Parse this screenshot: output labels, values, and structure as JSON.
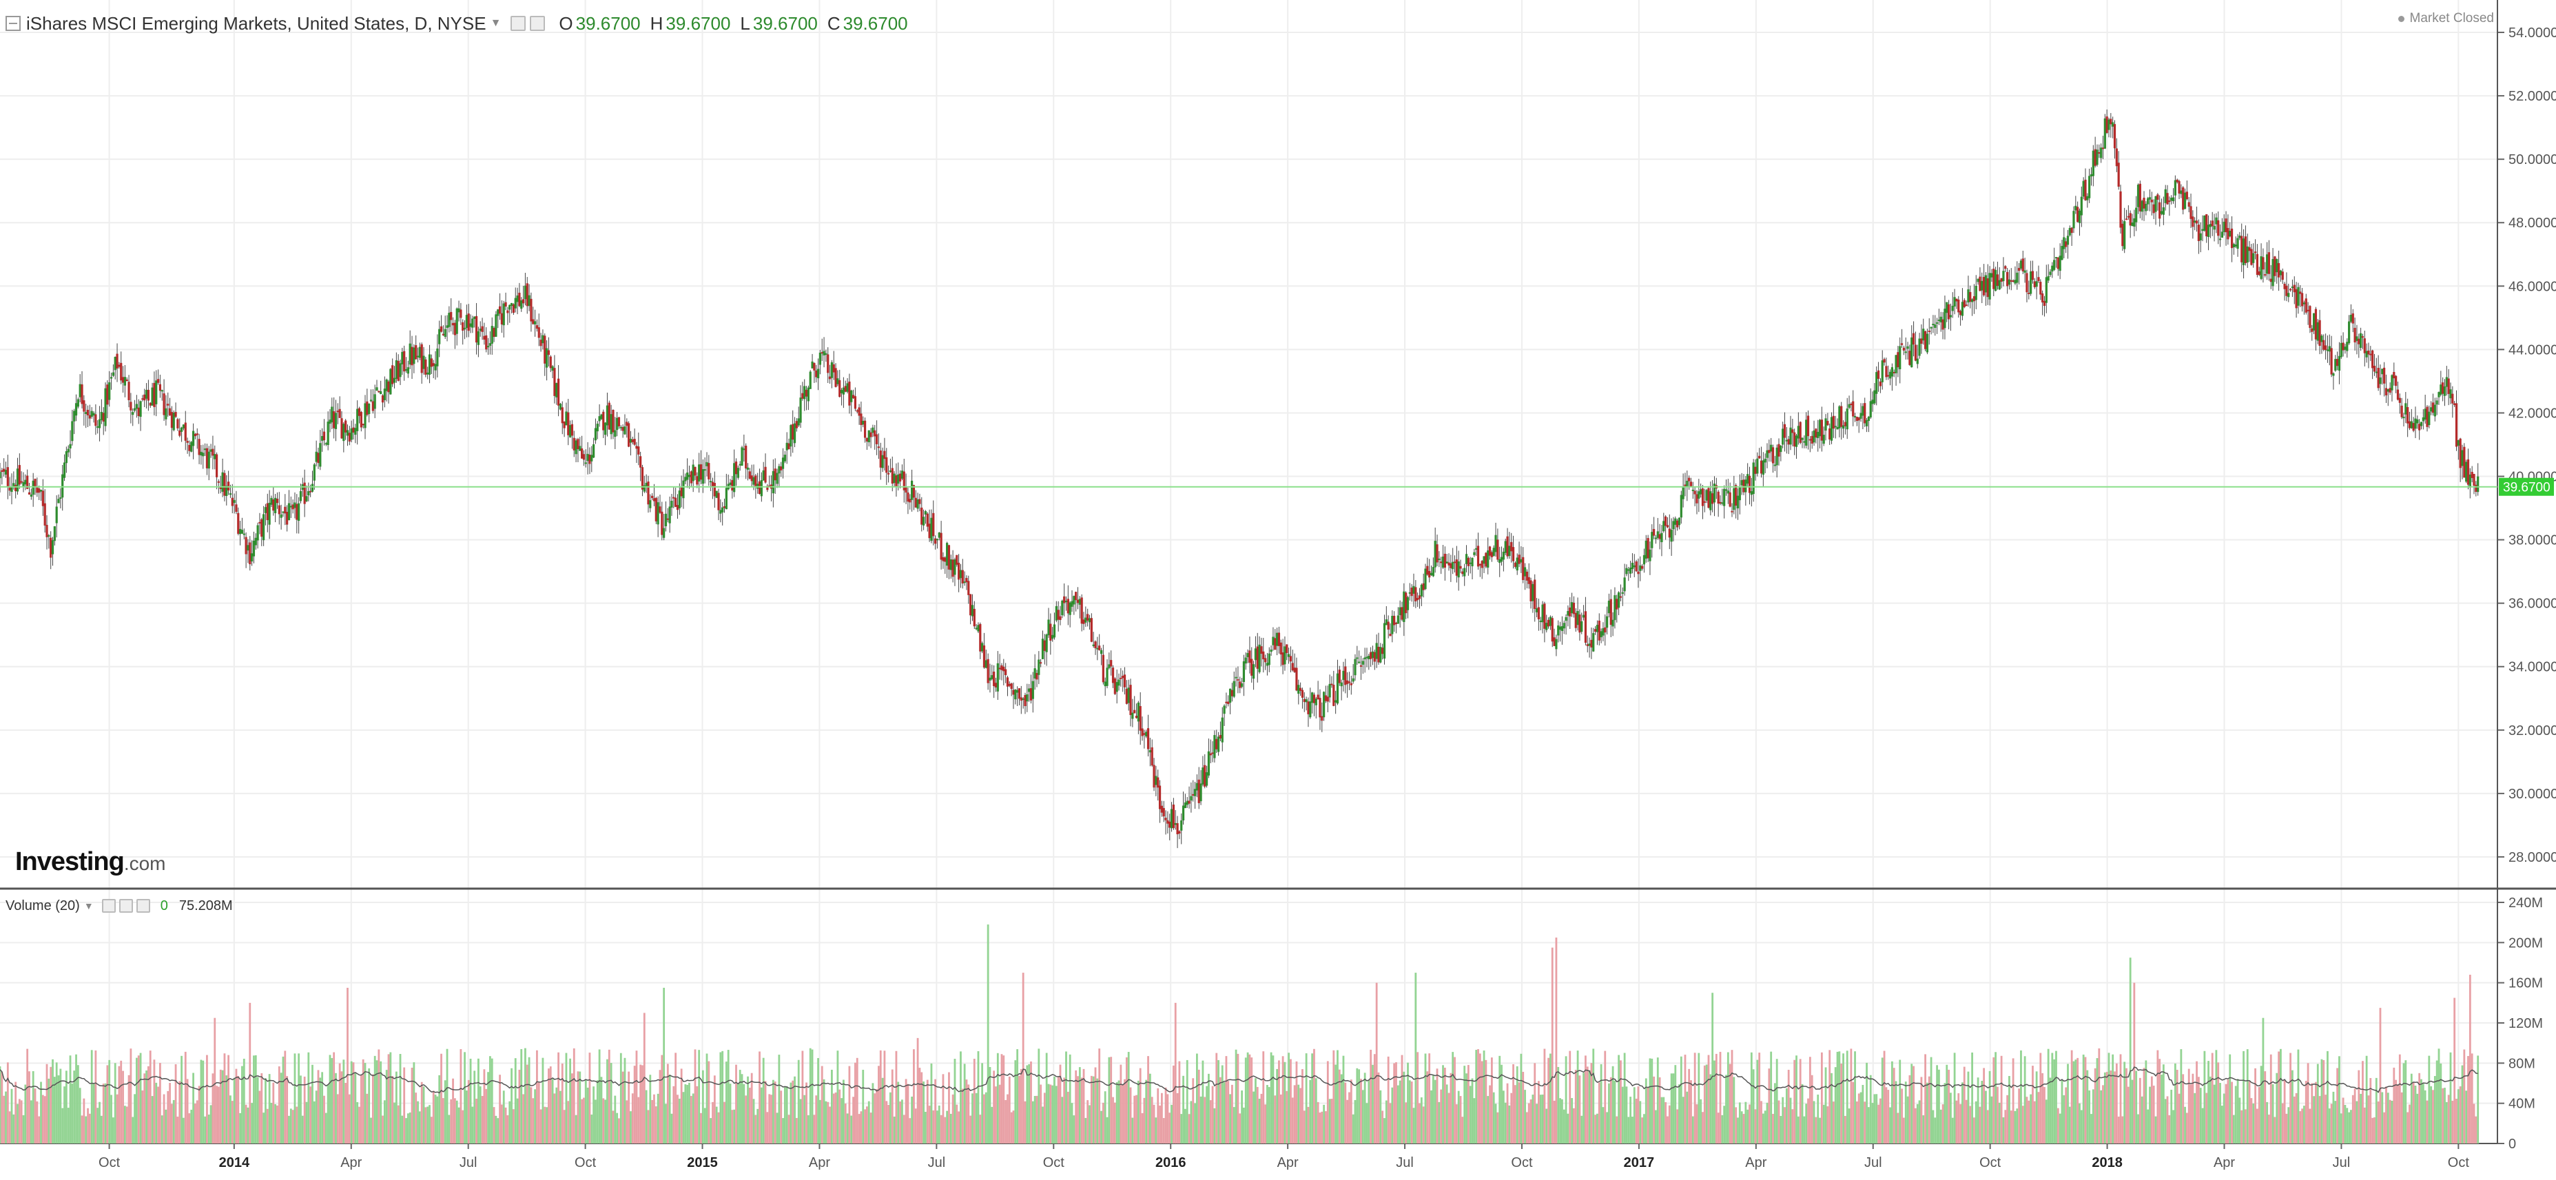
{
  "header": {
    "title": "iShares MSCI Emerging Markets, United States, D, NYSE",
    "open_label": "O",
    "open": "39.6700",
    "high_label": "H",
    "high": "39.6700",
    "low_label": "L",
    "low": "39.6700",
    "close_label": "C",
    "close": "39.6700"
  },
  "status": "Market Closed",
  "logo": {
    "main": "Investing",
    "suffix": ".com"
  },
  "volume_header": {
    "title": "Volume (20)",
    "value1": "0",
    "value2": "75.208M"
  },
  "price_tag": "39.6700",
  "colors": {
    "up": "#2f8c2f",
    "down": "#b42a2a",
    "vol_up": "#93d493",
    "vol_down": "#e8a0a5",
    "last_line": "#8be08b",
    "tag_bg": "#33cc33",
    "grid": "#eeeeee"
  },
  "chart_data": [
    {
      "type": "candlestick",
      "title": "",
      "y_ticks": [
        "28.0000",
        "30.0000",
        "32.0000",
        "34.0000",
        "36.0000",
        "38.0000",
        "40.0000",
        "42.0000",
        "44.0000",
        "46.0000",
        "48.0000",
        "50.0000",
        "52.0000",
        "54.0000"
      ],
      "ylim": [
        27,
        54.5
      ],
      "x_ticks": [
        "Oct",
        "2014",
        "Apr",
        "Jul",
        "Oct",
        "2015",
        "Apr",
        "Jul",
        "Oct",
        "2016",
        "Apr",
        "Jul",
        "Oct",
        "2017",
        "Apr",
        "Jul",
        "Oct",
        "2018",
        "Apr",
        "Jul",
        "Oct"
      ],
      "x_tick_positions": [
        2.8,
        6.0,
        9.0,
        12.0,
        15.0,
        18.0,
        21.0,
        24.0,
        27.0,
        30.0,
        33.0,
        36.0,
        39.0,
        42.0,
        45.0,
        48.0,
        51.0,
        54.0,
        57.0,
        60.0,
        63.0
      ],
      "xlim": [
        0,
        64
      ],
      "close_path": [
        [
          0.0,
          40.0
        ],
        [
          0.5,
          39.8
        ],
        [
          1.0,
          39.5
        ],
        [
          1.3,
          37.8
        ],
        [
          1.6,
          39.9
        ],
        [
          2.0,
          42.8
        ],
        [
          2.5,
          41.5
        ],
        [
          3.0,
          43.6
        ],
        [
          3.5,
          42.0
        ],
        [
          4.0,
          42.6
        ],
        [
          4.5,
          41.8
        ],
        [
          5.0,
          41.0
        ],
        [
          5.5,
          40.3
        ],
        [
          6.0,
          39.0
        ],
        [
          6.4,
          37.6
        ],
        [
          7.0,
          39.2
        ],
        [
          7.5,
          38.6
        ],
        [
          8.0,
          40.0
        ],
        [
          8.5,
          41.8
        ],
        [
          9.0,
          41.5
        ],
        [
          9.5,
          42.4
        ],
        [
          10.0,
          43.0
        ],
        [
          10.5,
          43.8
        ],
        [
          11.0,
          43.6
        ],
        [
          11.5,
          44.8
        ],
        [
          12.0,
          45.0
        ],
        [
          12.5,
          44.2
        ],
        [
          13.0,
          45.5
        ],
        [
          13.5,
          45.6
        ],
        [
          14.0,
          43.7
        ],
        [
          14.5,
          41.7
        ],
        [
          15.0,
          40.3
        ],
        [
          15.5,
          42.0
        ],
        [
          16.0,
          41.5
        ],
        [
          16.5,
          39.8
        ],
        [
          17.0,
          38.4
        ],
        [
          17.5,
          39.6
        ],
        [
          18.0,
          40.3
        ],
        [
          18.5,
          39.0
        ],
        [
          19.0,
          40.6
        ],
        [
          19.5,
          39.8
        ],
        [
          20.0,
          40.0
        ],
        [
          20.5,
          42.3
        ],
        [
          21.0,
          43.8
        ],
        [
          21.3,
          43.2
        ],
        [
          21.8,
          42.4
        ],
        [
          22.3,
          41.3
        ],
        [
          22.8,
          40.2
        ],
        [
          23.3,
          39.6
        ],
        [
          23.8,
          38.4
        ],
        [
          24.3,
          37.4
        ],
        [
          24.8,
          36.3
        ],
        [
          25.3,
          33.8
        ],
        [
          25.8,
          33.6
        ],
        [
          26.3,
          32.8
        ],
        [
          26.8,
          35.0
        ],
        [
          27.3,
          36.1
        ],
        [
          27.8,
          35.6
        ],
        [
          28.3,
          33.8
        ],
        [
          28.8,
          33.2
        ],
        [
          29.3,
          32.2
        ],
        [
          29.7,
          29.8
        ],
        [
          30.2,
          28.9
        ],
        [
          30.8,
          30.3
        ],
        [
          31.3,
          32.2
        ],
        [
          31.8,
          33.8
        ],
        [
          32.3,
          34.4
        ],
        [
          32.8,
          34.7
        ],
        [
          33.3,
          33.2
        ],
        [
          33.8,
          32.6
        ],
        [
          34.3,
          33.4
        ],
        [
          34.8,
          34.0
        ],
        [
          35.3,
          34.5
        ],
        [
          35.8,
          35.8
        ],
        [
          36.3,
          36.2
        ],
        [
          36.8,
          37.6
        ],
        [
          37.3,
          37.0
        ],
        [
          37.8,
          37.3
        ],
        [
          38.3,
          37.8
        ],
        [
          38.8,
          37.6
        ],
        [
          39.3,
          36.2
        ],
        [
          39.8,
          35.0
        ],
        [
          40.3,
          35.8
        ],
        [
          40.8,
          34.8
        ],
        [
          41.3,
          35.8
        ],
        [
          41.8,
          37.0
        ],
        [
          42.3,
          37.8
        ],
        [
          42.8,
          38.4
        ],
        [
          43.3,
          39.6
        ],
        [
          43.8,
          39.4
        ],
        [
          44.3,
          39.2
        ],
        [
          44.8,
          39.8
        ],
        [
          45.3,
          40.5
        ],
        [
          45.8,
          41.3
        ],
        [
          46.3,
          41.4
        ],
        [
          46.8,
          41.4
        ],
        [
          47.3,
          42.0
        ],
        [
          47.8,
          42.0
        ],
        [
          48.3,
          43.5
        ],
        [
          48.8,
          43.8
        ],
        [
          49.3,
          44.3
        ],
        [
          49.8,
          45.0
        ],
        [
          50.3,
          45.6
        ],
        [
          50.8,
          46.0
        ],
        [
          51.3,
          46.3
        ],
        [
          51.8,
          46.5
        ],
        [
          52.3,
          45.6
        ],
        [
          52.8,
          46.8
        ],
        [
          53.3,
          48.5
        ],
        [
          53.8,
          50.5
        ],
        [
          54.1,
          51.5
        ],
        [
          54.4,
          47.5
        ],
        [
          54.8,
          48.8
        ],
        [
          55.3,
          48.5
        ],
        [
          55.8,
          49.0
        ],
        [
          56.3,
          47.8
        ],
        [
          56.8,
          48.0
        ],
        [
          57.3,
          47.3
        ],
        [
          57.8,
          46.8
        ],
        [
          58.3,
          46.5
        ],
        [
          58.8,
          45.8
        ],
        [
          59.3,
          44.8
        ],
        [
          59.8,
          43.5
        ],
        [
          60.3,
          44.8
        ],
        [
          60.8,
          43.3
        ],
        [
          61.3,
          42.8
        ],
        [
          61.8,
          41.5
        ],
        [
          62.3,
          42.0
        ],
        [
          62.8,
          43.0
        ],
        [
          63.0,
          40.8
        ],
        [
          63.3,
          39.8
        ],
        [
          63.5,
          39.67
        ]
      ],
      "last_value": 39.67
    },
    {
      "type": "bar",
      "title": "Volume (20)",
      "y_ticks": [
        "0",
        "40M",
        "80M",
        "120M",
        "160M",
        "200M",
        "240M"
      ],
      "ylim": [
        0,
        240
      ],
      "unit": "M",
      "avg_level": 62,
      "spikes": [
        [
          25.3,
          218,
          "up"
        ],
        [
          39.9,
          205,
          "down"
        ],
        [
          39.8,
          195,
          "down"
        ],
        [
          54.6,
          185,
          "up"
        ],
        [
          54.7,
          160,
          "down"
        ],
        [
          26.2,
          170,
          "down"
        ],
        [
          36.3,
          170,
          "up"
        ],
        [
          35.3,
          160,
          "down"
        ],
        [
          43.9,
          150,
          "up"
        ],
        [
          6.4,
          140,
          "down"
        ],
        [
          8.9,
          155,
          "down"
        ],
        [
          5.5,
          125,
          "down"
        ],
        [
          17.0,
          155,
          "up"
        ],
        [
          16.5,
          130,
          "down"
        ],
        [
          63.3,
          168,
          "down"
        ],
        [
          62.9,
          145,
          "down"
        ],
        [
          58.0,
          125,
          "up"
        ],
        [
          61.0,
          135,
          "down"
        ],
        [
          23.5,
          105,
          "down"
        ],
        [
          30.1,
          140,
          "down"
        ]
      ]
    }
  ]
}
